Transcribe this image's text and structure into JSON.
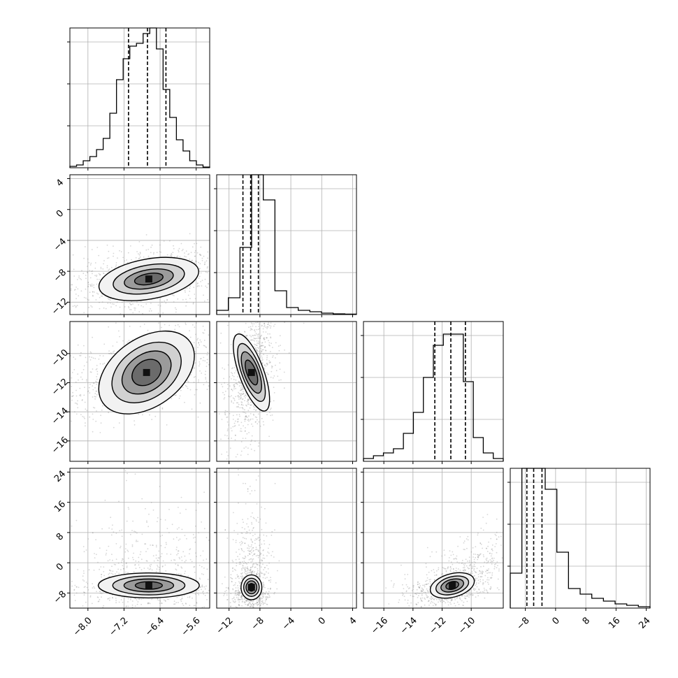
{
  "chart_data": [
    {
      "panel": "hist-p1",
      "type": "bar",
      "xlim": [
        -8.4,
        -5.3
      ],
      "ylim": [
        0,
        1.0
      ],
      "grid": true,
      "histtype": "step",
      "counts": [
        0.01,
        0.02,
        0.05,
        0.08,
        0.13,
        0.21,
        0.39,
        0.63,
        0.78,
        0.87,
        0.89,
        0.96,
        1.0,
        0.85,
        0.56,
        0.36,
        0.2,
        0.12,
        0.05,
        0.02,
        0.005
      ],
      "quantiles": [
        -7.1,
        -6.68,
        -6.27
      ]
    },
    {
      "panel": "hist-p2",
      "type": "bar",
      "xlim": [
        -13.6,
        4.5
      ],
      "ylim": [
        0,
        1.0
      ],
      "grid": true,
      "histtype": "step",
      "counts": [
        0.03,
        0.12,
        0.48,
        1.0,
        0.82,
        0.17,
        0.05,
        0.03,
        0.02,
        0.01,
        0.005,
        0.003
      ],
      "quantiles": [
        -10.2,
        -9.2,
        -8.2
      ]
    },
    {
      "panel": "hist-p3",
      "type": "bar",
      "xlim": [
        -17.4,
        -7.8
      ],
      "ylim": [
        0,
        1.0
      ],
      "grid": true,
      "histtype": "step",
      "counts": [
        0.02,
        0.04,
        0.06,
        0.09,
        0.2,
        0.35,
        0.6,
        0.83,
        0.91,
        0.91,
        0.57,
        0.17,
        0.06,
        0.02
      ],
      "quantiles": [
        -12.5,
        -11.4,
        -10.4
      ]
    },
    {
      "panel": "hist-p4",
      "type": "bar",
      "xlim": [
        -12,
        25
      ],
      "ylim": [
        0,
        1.0
      ],
      "grid": true,
      "histtype": "step",
      "counts": [
        0.25,
        1.0,
        1.0,
        0.85,
        0.4,
        0.14,
        0.1,
        0.07,
        0.05,
        0.03,
        0.02,
        0.01
      ],
      "quantiles": [
        -7.6,
        -5.8,
        -3.6
      ]
    },
    {
      "panel": "scatter-p1-p2",
      "type": "scatter",
      "xlim": [
        -8.4,
        -5.3
      ],
      "ylim": [
        -13.6,
        4.5
      ],
      "grid": true,
      "x_mean": -6.65,
      "y_mean": -9.0,
      "contour_levels": [
        {
          "rx": 0.32,
          "ry": 0.7,
          "rot": -10,
          "fill": "#6b6b6b"
        },
        {
          "rx": 0.55,
          "ry": 1.2,
          "rot": -10,
          "fill": "#9b9b9b"
        },
        {
          "rx": 0.8,
          "ry": 1.8,
          "rot": -10,
          "fill": "#d1d1d1"
        },
        {
          "rx": 1.12,
          "ry": 2.6,
          "rot": -10,
          "fill": "#f2f2f2"
        }
      ]
    },
    {
      "panel": "scatter-p1-p3",
      "type": "scatter",
      "xlim": [
        -8.4,
        -5.3
      ],
      "ylim": [
        -17.4,
        -7.8
      ],
      "grid": true,
      "x_mean": -6.7,
      "y_mean": -11.3,
      "contour_levels": [
        {
          "rx": 0.35,
          "ry": 0.8,
          "rot": -35,
          "fill": "#6b6b6b"
        },
        {
          "rx": 0.6,
          "ry": 1.25,
          "rot": -35,
          "fill": "#9b9b9b"
        },
        {
          "rx": 0.85,
          "ry": 1.75,
          "rot": -35,
          "fill": "#d1d1d1"
        },
        {
          "rx": 1.18,
          "ry": 2.35,
          "rot": -35,
          "fill": "#f2f2f2"
        }
      ]
    },
    {
      "panel": "scatter-p2-p3",
      "type": "scatter",
      "xlim": [
        -13.6,
        4.5
      ],
      "ylim": [
        -17.4,
        -7.8
      ],
      "grid": true,
      "x_mean": -9.1,
      "y_mean": -11.3,
      "contour_levels": [
        {
          "rx": 0.6,
          "ry": 0.9,
          "rot": -20,
          "fill": "#6b6b6b"
        },
        {
          "rx": 0.95,
          "ry": 1.5,
          "rot": -20,
          "fill": "#9b9b9b"
        },
        {
          "rx": 1.25,
          "ry": 2.1,
          "rot": -20,
          "fill": "#d1d1d1"
        },
        {
          "rx": 1.6,
          "ry": 2.8,
          "rot": -20,
          "fill": "#f2f2f2"
        }
      ]
    },
    {
      "panel": "scatter-p1-p4",
      "type": "scatter",
      "xlim": [
        -8.4,
        -5.3
      ],
      "ylim": [
        -12,
        25
      ],
      "grid": true,
      "x_mean": -6.65,
      "y_mean": -6.0,
      "contour_levels": [
        {
          "rx": 0.3,
          "ry": 1.0,
          "rot": 0,
          "fill": "#6b6b6b"
        },
        {
          "rx": 0.55,
          "ry": 1.7,
          "rot": 0,
          "fill": "#9b9b9b"
        },
        {
          "rx": 0.8,
          "ry": 2.5,
          "rot": 0,
          "fill": "#d1d1d1"
        },
        {
          "rx": 1.12,
          "ry": 3.3,
          "rot": 0,
          "fill": "#f2f2f2"
        }
      ]
    },
    {
      "panel": "scatter-p2-p4",
      "type": "scatter",
      "xlim": [
        -13.6,
        4.5
      ],
      "ylim": [
        -12,
        25
      ],
      "grid": true,
      "x_mean": -9.1,
      "y_mean": -6.5,
      "contour_levels": [
        {
          "rx": 0.4,
          "ry": 1.0,
          "rot": 0,
          "fill": "#6b6b6b"
        },
        {
          "rx": 0.7,
          "ry": 1.7,
          "rot": 0,
          "fill": "#9b9b9b"
        },
        {
          "rx": 1.0,
          "ry": 2.4,
          "rot": 0,
          "fill": "#d1d1d1"
        },
        {
          "rx": 1.35,
          "ry": 3.3,
          "rot": 0,
          "fill": "#f2f2f2"
        }
      ]
    },
    {
      "panel": "scatter-p3-p4",
      "type": "scatter",
      "xlim": [
        -17.4,
        -7.8
      ],
      "ylim": [
        -12,
        25
      ],
      "grid": true,
      "x_mean": -11.3,
      "y_mean": -6.0,
      "contour_levels": [
        {
          "rx": 0.45,
          "ry": 1.0,
          "rot": -15,
          "fill": "#6b6b6b"
        },
        {
          "rx": 0.8,
          "ry": 1.6,
          "rot": -15,
          "fill": "#9b9b9b"
        },
        {
          "rx": 1.15,
          "ry": 2.3,
          "rot": -15,
          "fill": "#d1d1d1"
        },
        {
          "rx": 1.55,
          "ry": 3.1,
          "rot": -15,
          "fill": "#f2f2f2"
        }
      ]
    }
  ],
  "axes": {
    "p1_ticks": [
      -8.0,
      -7.2,
      -6.4,
      -5.6
    ],
    "p1_tick_labels": [
      "−8.0",
      "−7.2",
      "−6.4",
      "−5.6"
    ],
    "p2_ticks": [
      4,
      0,
      -4,
      -8,
      -12
    ],
    "p2_tick_labels": [
      "4",
      "0",
      "−4",
      "−8",
      "−12"
    ],
    "p2_xticks": [
      -12,
      -8,
      -4,
      0,
      4
    ],
    "p2_xtick_labels": [
      "−12",
      "−8",
      "−4",
      "0",
      "4"
    ],
    "p3_ticks": [
      -10,
      -12,
      -14,
      -16
    ],
    "p3_tick_labels": [
      "−10",
      "−12",
      "−14",
      "−16"
    ],
    "p3_xticks": [
      -16,
      -14,
      -12,
      -10
    ],
    "p3_xtick_labels": [
      "−16",
      "−14",
      "−12",
      "−10"
    ],
    "p4_ticks": [
      24,
      16,
      8,
      0,
      -8
    ],
    "p4_tick_labels": [
      "24",
      "16",
      "8",
      "0",
      "−8"
    ],
    "p4_xticks": [
      -8,
      0,
      8,
      16,
      24
    ],
    "p4_xtick_labels": [
      "−8",
      "0",
      "8",
      "16",
      "24"
    ]
  },
  "colors": {
    "line": "#000000",
    "grid": "#b0b0b0",
    "scatter": "#8a8a8a",
    "quantile": "#000000"
  }
}
